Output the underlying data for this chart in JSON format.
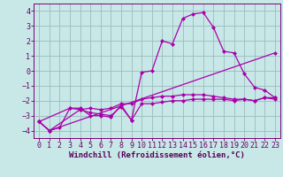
{
  "background_color": "#c8e8e8",
  "grid_color": "#99bbbb",
  "line_color": "#aa00aa",
  "marker_style": "D",
  "marker_size": 2.0,
  "line_width": 0.9,
  "xlabel": "Windchill (Refroidissement éolien,°C)",
  "xlabel_fontsize": 6.5,
  "tick_fontsize": 6.0,
  "xlim": [
    -0.5,
    23.5
  ],
  "ylim": [
    -4.5,
    4.5
  ],
  "yticks": [
    -4,
    -3,
    -2,
    -1,
    0,
    1,
    2,
    3,
    4
  ],
  "xticks": [
    0,
    1,
    2,
    3,
    4,
    5,
    6,
    7,
    8,
    9,
    10,
    11,
    12,
    13,
    14,
    15,
    16,
    17,
    18,
    19,
    20,
    21,
    22,
    23
  ],
  "series1": [
    [
      0,
      -3.4
    ],
    [
      1,
      -4.0
    ],
    [
      2,
      -3.8
    ],
    [
      3,
      -2.5
    ],
    [
      4,
      -2.5
    ],
    [
      5,
      -3.0
    ],
    [
      6,
      -3.0
    ],
    [
      7,
      -3.1
    ],
    [
      8,
      -2.3
    ],
    [
      9,
      -3.3
    ],
    [
      10,
      -0.1
    ],
    [
      11,
      0.0
    ],
    [
      12,
      2.0
    ],
    [
      13,
      1.8
    ],
    [
      14,
      3.5
    ],
    [
      15,
      3.8
    ],
    [
      16,
      3.9
    ],
    [
      17,
      2.9
    ],
    [
      18,
      1.3
    ],
    [
      19,
      1.2
    ],
    [
      20,
      -0.2
    ],
    [
      21,
      -1.1
    ],
    [
      22,
      -1.3
    ],
    [
      23,
      -1.8
    ]
  ],
  "series2": [
    [
      0,
      -3.4
    ],
    [
      3,
      -2.5
    ],
    [
      4,
      -2.6
    ],
    [
      5,
      -2.5
    ],
    [
      6,
      -2.6
    ],
    [
      7,
      -2.5
    ],
    [
      8,
      -2.2
    ],
    [
      9,
      -2.2
    ],
    [
      10,
      -1.9
    ],
    [
      11,
      -1.8
    ],
    [
      12,
      -1.7
    ],
    [
      13,
      -1.7
    ],
    [
      14,
      -1.6
    ],
    [
      15,
      -1.6
    ],
    [
      16,
      -1.6
    ],
    [
      17,
      -1.7
    ],
    [
      18,
      -1.8
    ],
    [
      19,
      -1.9
    ],
    [
      20,
      -1.9
    ],
    [
      21,
      -2.0
    ],
    [
      22,
      -1.8
    ],
    [
      23,
      -1.8
    ]
  ],
  "series3": [
    [
      0,
      -3.4
    ],
    [
      1,
      -4.0
    ],
    [
      23,
      1.2
    ]
  ],
  "series4": [
    [
      0,
      -3.4
    ],
    [
      1,
      -4.0
    ],
    [
      4,
      -2.6
    ],
    [
      5,
      -2.8
    ],
    [
      6,
      -2.9
    ],
    [
      7,
      -3.0
    ],
    [
      8,
      -2.4
    ],
    [
      9,
      -3.3
    ],
    [
      10,
      -2.2
    ],
    [
      11,
      -2.2
    ],
    [
      12,
      -2.1
    ],
    [
      13,
      -2.0
    ],
    [
      14,
      -2.0
    ],
    [
      15,
      -1.9
    ],
    [
      16,
      -1.9
    ],
    [
      17,
      -1.9
    ],
    [
      18,
      -1.9
    ],
    [
      19,
      -2.0
    ],
    [
      20,
      -1.9
    ],
    [
      21,
      -2.0
    ],
    [
      22,
      -1.8
    ],
    [
      23,
      -1.9
    ]
  ]
}
